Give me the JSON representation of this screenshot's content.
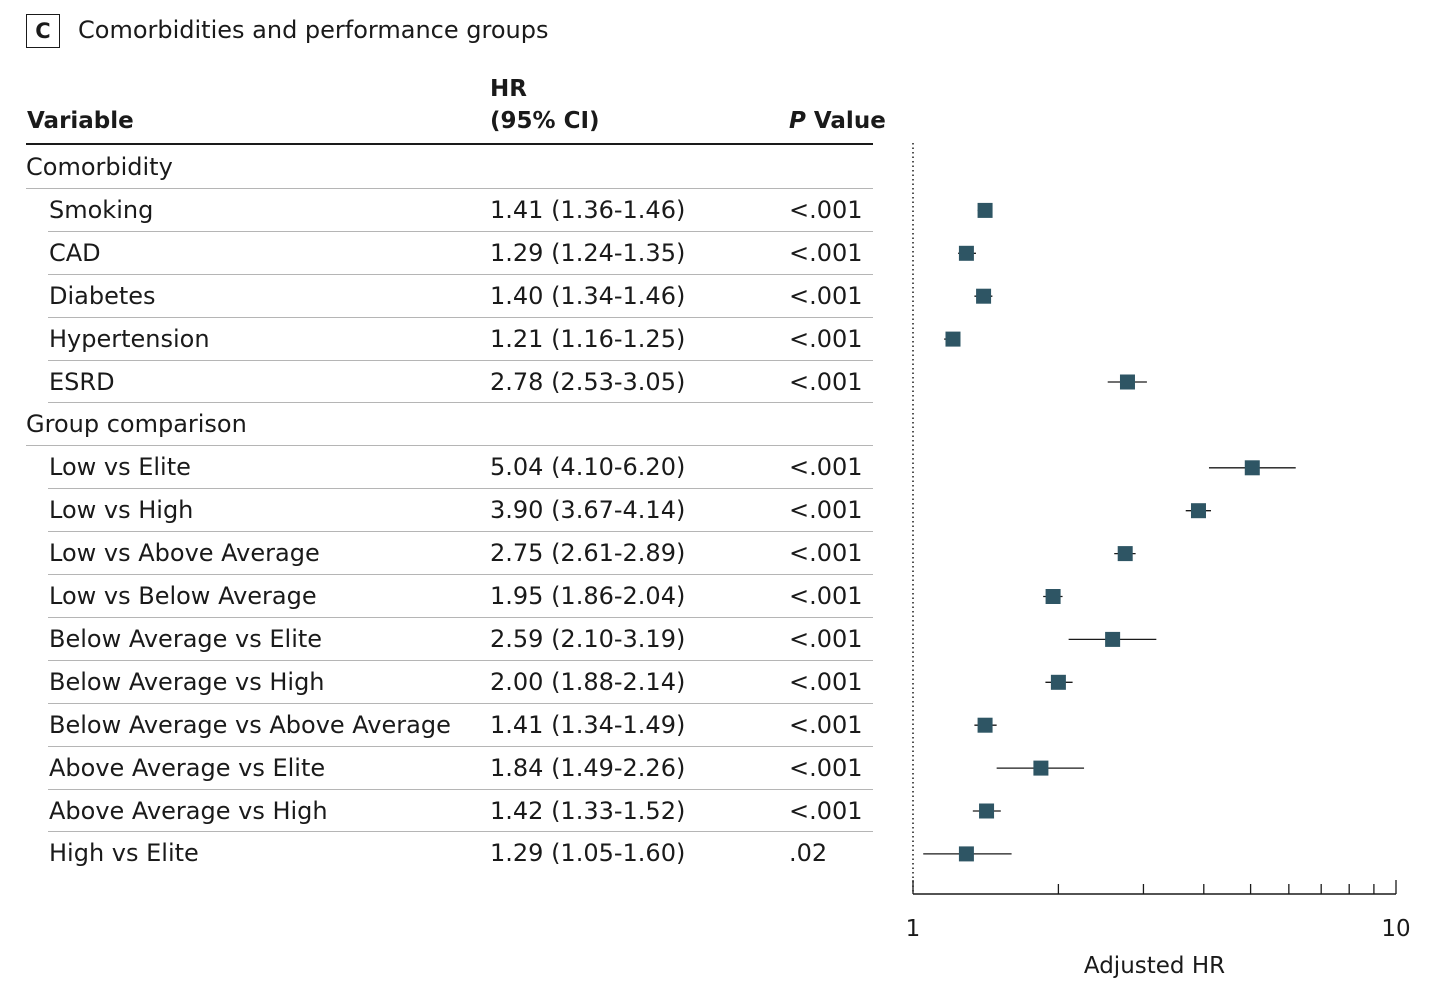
{
  "panel": {
    "label": "C",
    "title": "Comorbidities and performance groups"
  },
  "headers": {
    "variable": "Variable",
    "hr_line1": "HR",
    "hr_line2": "(95% CI)",
    "p_italic": "P",
    "p_rest": " Value"
  },
  "rows": [
    {
      "type": "group",
      "label": "Comorbidity"
    },
    {
      "type": "item",
      "label": "Smoking",
      "hr_text": "1.41 (1.36-1.46)",
      "p": "<.001"
    },
    {
      "type": "item",
      "label": "CAD",
      "hr_text": "1.29 (1.24-1.35)",
      "p": "<.001"
    },
    {
      "type": "item",
      "label": "Diabetes",
      "hr_text": "1.40 (1.34-1.46)",
      "p": "<.001"
    },
    {
      "type": "item",
      "label": "Hypertension",
      "hr_text": "1.21 (1.16-1.25)",
      "p": "<.001"
    },
    {
      "type": "item",
      "label": "ESRD",
      "hr_text": "2.78 (2.53-3.05)",
      "p": "<.001"
    },
    {
      "type": "group",
      "label": "Group comparison"
    },
    {
      "type": "item",
      "label": "Low vs Elite",
      "hr_text": "5.04 (4.10-6.20)",
      "p": "<.001"
    },
    {
      "type": "item",
      "label": "Low vs High",
      "hr_text": "3.90 (3.67-4.14)",
      "p": "<.001"
    },
    {
      "type": "item",
      "label": "Low vs Above Average",
      "hr_text": "2.75 (2.61-2.89)",
      "p": "<.001"
    },
    {
      "type": "item",
      "label": "Low vs Below Average",
      "hr_text": "1.95 (1.86-2.04)",
      "p": "<.001"
    },
    {
      "type": "item",
      "label": "Below Average vs Elite",
      "hr_text": "2.59 (2.10-3.19)",
      "p": "<.001"
    },
    {
      "type": "item",
      "label": "Below Average vs High",
      "hr_text": "2.00 (1.88-2.14)",
      "p": "<.001"
    },
    {
      "type": "item",
      "label": "Below Average vs Above Average",
      "hr_text": "1.41 (1.34-1.49)",
      "p": "<.001"
    },
    {
      "type": "item",
      "label": "Above Average vs Elite",
      "hr_text": "1.84 (1.49-2.26)",
      "p": "<.001"
    },
    {
      "type": "item",
      "label": "Above Average vs High",
      "hr_text": "1.42 (1.33-1.52)",
      "p": "<.001"
    },
    {
      "type": "item",
      "label": "High vs Elite",
      "hr_text": "1.29 (1.05-1.60)",
      "p": ".02"
    }
  ],
  "chart_data": {
    "type": "scatter",
    "subtype": "forest-plot",
    "x_scale": "log",
    "xlabel": "Adjusted HR",
    "xlim": [
      1,
      10
    ],
    "x_tick_labels": [
      "1",
      "10"
    ],
    "reference_line": 1,
    "marker_color": "#2e5564",
    "series": [
      {
        "label": "Smoking",
        "hr": 1.41,
        "lo": 1.36,
        "hi": 1.46
      },
      {
        "label": "CAD",
        "hr": 1.29,
        "lo": 1.24,
        "hi": 1.35
      },
      {
        "label": "Diabetes",
        "hr": 1.4,
        "lo": 1.34,
        "hi": 1.46
      },
      {
        "label": "Hypertension",
        "hr": 1.21,
        "lo": 1.16,
        "hi": 1.25
      },
      {
        "label": "ESRD",
        "hr": 2.78,
        "lo": 2.53,
        "hi": 3.05
      },
      {
        "label": "Low vs Elite",
        "hr": 5.04,
        "lo": 4.1,
        "hi": 6.2
      },
      {
        "label": "Low vs High",
        "hr": 3.9,
        "lo": 3.67,
        "hi": 4.14
      },
      {
        "label": "Low vs Above Average",
        "hr": 2.75,
        "lo": 2.61,
        "hi": 2.89
      },
      {
        "label": "Low vs Below Average",
        "hr": 1.95,
        "lo": 1.86,
        "hi": 2.04
      },
      {
        "label": "Below Average vs Elite",
        "hr": 2.59,
        "lo": 2.1,
        "hi": 3.19
      },
      {
        "label": "Below Average vs High",
        "hr": 2.0,
        "lo": 1.88,
        "hi": 2.14
      },
      {
        "label": "Below Average vs Above Average",
        "hr": 1.41,
        "lo": 1.34,
        "hi": 1.49
      },
      {
        "label": "Above Average vs Elite",
        "hr": 1.84,
        "lo": 1.49,
        "hi": 2.26
      },
      {
        "label": "Above Average vs High",
        "hr": 1.42,
        "lo": 1.33,
        "hi": 1.52
      },
      {
        "label": "High vs Elite",
        "hr": 1.29,
        "lo": 1.05,
        "hi": 1.6
      }
    ]
  }
}
